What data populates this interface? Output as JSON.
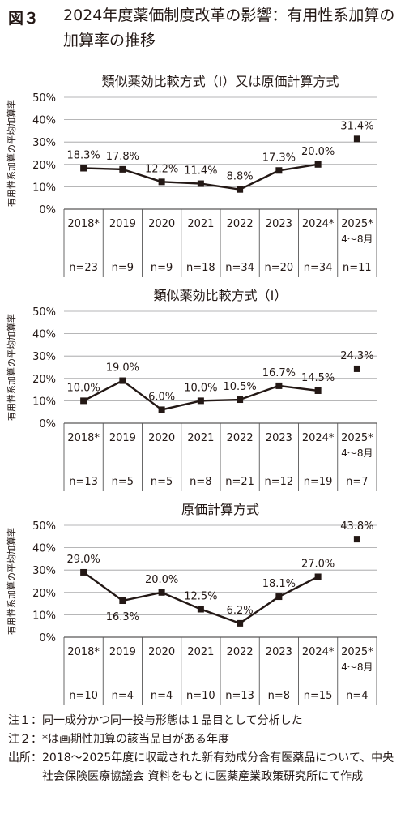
{
  "figure": {
    "label": "図３",
    "title": "2024年度薬価制度改革の影響：有用性系加算の加算率の推移"
  },
  "colors": {
    "line": "#231815",
    "grid": "#9e9e9f",
    "frame": "#595757"
  },
  "chart_data": [
    {
      "type": "line",
      "title": "類似薬効比較方式（Ⅰ）又は原価計算方式",
      "ylabel": "有用性系加算の平均加算率",
      "ylim": [
        0,
        50
      ],
      "yticks": [
        "0%",
        "10%",
        "20%",
        "30%",
        "40%",
        "50%"
      ],
      "grid": true,
      "categories": [
        "2018*",
        "2019",
        "2020",
        "2021",
        "2022",
        "2023",
        "2024*",
        "2025*"
      ],
      "category_sub": [
        "",
        "",
        "",
        "",
        "",
        "",
        "",
        "4～8月"
      ],
      "values": [
        18.3,
        17.8,
        12.2,
        11.4,
        8.8,
        17.3,
        20.0,
        31.4
      ],
      "data_labels": [
        "18.3%",
        "17.8%",
        "12.2%",
        "11.4%",
        "8.8%",
        "17.3%",
        "20.0%",
        "31.4%"
      ],
      "label_position": [
        "above",
        "above",
        "above",
        "above",
        "above",
        "above",
        "above",
        "above"
      ],
      "n_labels": [
        "n=23",
        "n=9",
        "n=9",
        "n=18",
        "n=34",
        "n=20",
        "n=34",
        "n=11"
      ],
      "standalone_last_point": true
    },
    {
      "type": "line",
      "title": "類似薬効比較方式（Ⅰ）",
      "ylabel": "有用性系加算の平均加算率",
      "ylim": [
        0,
        50
      ],
      "yticks": [
        "0%",
        "10%",
        "20%",
        "30%",
        "40%",
        "50%"
      ],
      "grid": true,
      "categories": [
        "2018*",
        "2019",
        "2020",
        "2021",
        "2022",
        "2023",
        "2024*",
        "2025*"
      ],
      "category_sub": [
        "",
        "",
        "",
        "",
        "",
        "",
        "",
        "4～8月"
      ],
      "values": [
        10.0,
        19.0,
        6.0,
        10.0,
        10.5,
        16.7,
        14.5,
        24.3
      ],
      "data_labels": [
        "10.0%",
        "19.0%",
        "6.0%",
        "10.0%",
        "10.5%",
        "16.7%",
        "14.5%",
        "24.3%"
      ],
      "label_position": [
        "above",
        "above",
        "above",
        "above",
        "above",
        "above",
        "above",
        "above"
      ],
      "n_labels": [
        "n=13",
        "n=5",
        "n=5",
        "n=8",
        "n=21",
        "n=12",
        "n=19",
        "n=7"
      ],
      "standalone_last_point": true
    },
    {
      "type": "line",
      "title": "原価計算方式",
      "ylabel": "有用性系加算の平均加算率",
      "ylim": [
        0,
        50
      ],
      "yticks": [
        "0%",
        "10%",
        "20%",
        "30%",
        "40%",
        "50%"
      ],
      "grid": true,
      "categories": [
        "2018*",
        "2019",
        "2020",
        "2021",
        "2022",
        "2023",
        "2024*",
        "2025*"
      ],
      "category_sub": [
        "",
        "",
        "",
        "",
        "",
        "",
        "",
        "4～8月"
      ],
      "values": [
        29.0,
        16.3,
        20.0,
        12.5,
        6.2,
        18.1,
        27.0,
        43.8
      ],
      "data_labels": [
        "29.0%",
        "16.3%",
        "20.0%",
        "12.5%",
        "6.2%",
        "18.1%",
        "27.0%",
        "43.8%"
      ],
      "label_position": [
        "above",
        "below",
        "above",
        "above",
        "above",
        "above",
        "above",
        "above"
      ],
      "n_labels": [
        "n=10",
        "n=4",
        "n=4",
        "n=10",
        "n=13",
        "n=8",
        "n=15",
        "n=4"
      ],
      "standalone_last_point": true
    }
  ],
  "notes": [
    {
      "label": "注１：",
      "text": "同一成分かつ同一投与形態は１品目として分析した"
    },
    {
      "label": "注２：",
      "text": "*は画期性加算の該当品目がある年度"
    },
    {
      "label": "出所：",
      "text": "2018～2025年度に収載された新有効成分含有医薬品について、中央社会保険医療協議会 資料をもとに医薬産業政策研究所にて作成"
    }
  ]
}
